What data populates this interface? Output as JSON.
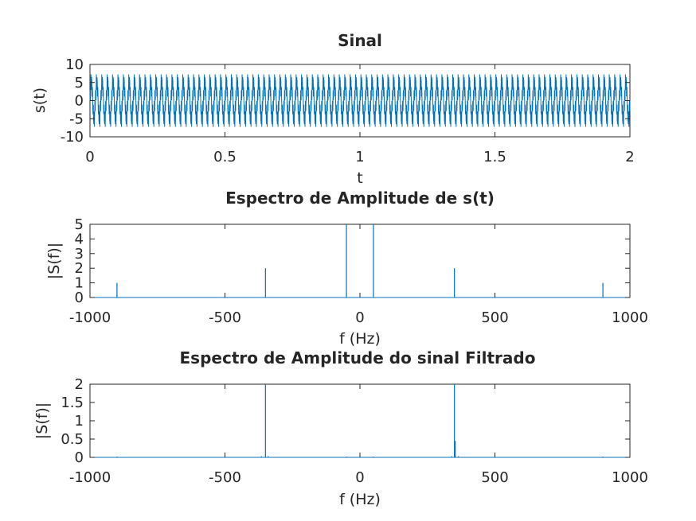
{
  "figure": {
    "background": "#ffffff",
    "series_color": "#0072bd",
    "axis_color": "#262626"
  },
  "chart_data": [
    {
      "type": "line",
      "title": "Sinal",
      "xlabel": "t",
      "ylabel": "s(t)",
      "xlim": [
        0,
        2
      ],
      "ylim": [
        -10,
        10
      ],
      "xticks": [
        0,
        0.5,
        1,
        1.5,
        2
      ],
      "xtick_labels": [
        "0",
        "0.5",
        "1",
        "1.5",
        "2"
      ],
      "yticks": [
        -10,
        -5,
        0,
        5,
        10
      ],
      "ytick_labels": [
        "-10",
        "-5",
        "0",
        "5",
        "10"
      ],
      "grid": false,
      "signal": {
        "description_components": [
          {
            "amplitude": 5,
            "frequency_hz": 50
          },
          {
            "amplitude": 2,
            "frequency_hz": 350
          },
          {
            "amplitude": 1,
            "frequency_hz": 900
          }
        ],
        "peak_range": [
          -7.5,
          7.5
        ]
      }
    },
    {
      "type": "line",
      "title": "Espectro de Amplitude de s(t)",
      "xlabel": "f (Hz)",
      "ylabel": "|S(f)|",
      "xlim": [
        -1000,
        1000
      ],
      "ylim": [
        0,
        5
      ],
      "xticks": [
        -1000,
        -500,
        0,
        500,
        1000
      ],
      "xtick_labels": [
        "-1000",
        "-500",
        "0",
        "500",
        "1000"
      ],
      "yticks": [
        0,
        1,
        2,
        3,
        4,
        5
      ],
      "ytick_labels": [
        "0",
        "1",
        "2",
        "3",
        "4",
        "5"
      ],
      "grid": false,
      "peaks": [
        {
          "f": -900,
          "value": 1
        },
        {
          "f": -350,
          "value": 2
        },
        {
          "f": -50,
          "value": 5
        },
        {
          "f": 50,
          "value": 5
        },
        {
          "f": 350,
          "value": 2
        },
        {
          "f": 900,
          "value": 1
        }
      ]
    },
    {
      "type": "line",
      "title": "Espectro de Amplitude do sinal Filtrado",
      "xlabel": "f (Hz)",
      "ylabel": "|S(f)|",
      "xlim": [
        -1000,
        1000
      ],
      "ylim": [
        0,
        2
      ],
      "xticks": [
        -1000,
        -500,
        0,
        500,
        1000
      ],
      "xtick_labels": [
        "-1000",
        "-500",
        "0",
        "500",
        "1000"
      ],
      "yticks": [
        0,
        0.5,
        1,
        1.5,
        2
      ],
      "ytick_labels": [
        "0",
        "0.5",
        "1",
        "1.5",
        "2"
      ],
      "grid": false,
      "peaks": [
        {
          "f": -900,
          "value": 0.02
        },
        {
          "f": -365,
          "value": 0.03
        },
        {
          "f": -350,
          "value": 2
        },
        {
          "f": -340,
          "value": 0.03
        },
        {
          "f": -50,
          "value": 0.02
        },
        {
          "f": 50,
          "value": 0.02
        },
        {
          "f": 340,
          "value": 0.03
        },
        {
          "f": 350,
          "value": 2
        },
        {
          "f": 353,
          "value": 0.45
        },
        {
          "f": 365,
          "value": 0.03
        },
        {
          "f": 900,
          "value": 0.02
        }
      ]
    }
  ]
}
